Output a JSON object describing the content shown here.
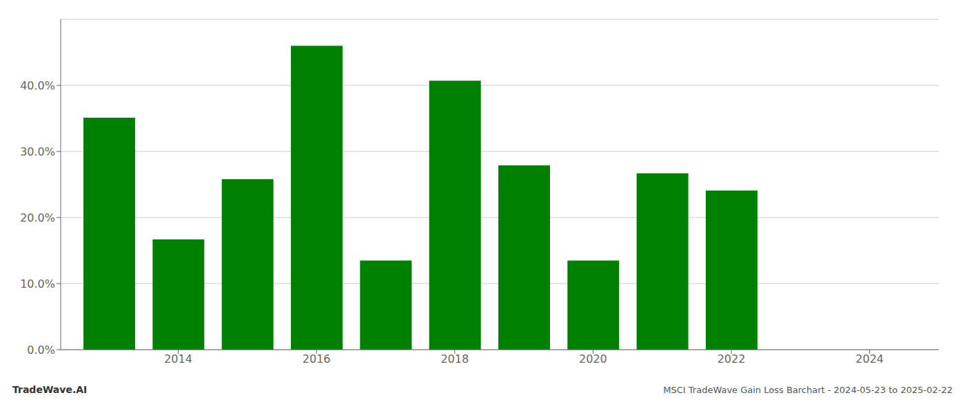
{
  "chart_data": {
    "type": "bar",
    "x": [
      2013,
      2014,
      2015,
      2016,
      2017,
      2018,
      2019,
      2020,
      2021,
      2022
    ],
    "values": [
      0.351,
      0.167,
      0.258,
      0.46,
      0.135,
      0.407,
      0.279,
      0.135,
      0.267,
      0.241
    ],
    "color": "#008000",
    "xlim": [
      2012.3,
      2025.0
    ],
    "xticks": [
      2014,
      2016,
      2018,
      2020,
      2022,
      2024
    ],
    "ylim": [
      0.0,
      0.5
    ],
    "yticks": [
      {
        "value": 0.0,
        "label": "0.0%"
      },
      {
        "value": 0.1,
        "label": "10.0%"
      },
      {
        "value": 0.2,
        "label": "20.0%"
      },
      {
        "value": 0.3,
        "label": "30.0%"
      },
      {
        "value": 0.4,
        "label": "40.0%"
      }
    ],
    "grid": true,
    "annotations": [
      "TradeWave.AI",
      "MSCI TradeWave Gain Loss Barchart - 2024-05-23 to 2025-02-22"
    ]
  }
}
